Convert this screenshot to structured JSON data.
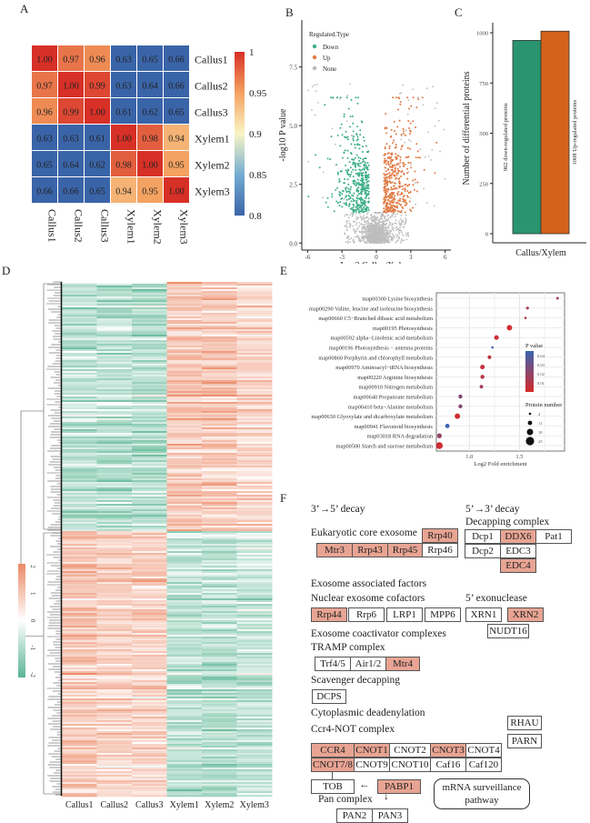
{
  "panels": {
    "A": "A",
    "B": "B",
    "C": "C",
    "D": "D",
    "E": "E",
    "F": "F"
  },
  "chart_data": [
    {
      "id": "A",
      "type": "heatmap",
      "title": "",
      "rows": [
        "Callus1",
        "Callus2",
        "Callus3",
        "Xylem1",
        "Xylem2",
        "Xylem3"
      ],
      "cols": [
        "Callus1",
        "Callus2",
        "Callus3",
        "Xylem1",
        "Xylem2",
        "Xylem3"
      ],
      "values": [
        [
          1.0,
          0.97,
          0.96,
          0.63,
          0.65,
          0.66
        ],
        [
          0.97,
          1.0,
          0.99,
          0.63,
          0.64,
          0.66
        ],
        [
          0.96,
          0.99,
          1.0,
          0.61,
          0.62,
          0.65
        ],
        [
          0.63,
          0.63,
          0.61,
          1.0,
          0.98,
          0.94
        ],
        [
          0.65,
          0.64,
          0.62,
          0.98,
          1.0,
          0.95
        ],
        [
          0.66,
          0.66,
          0.65,
          0.94,
          0.95,
          1.0
        ]
      ],
      "colorbar": {
        "min": 0.8,
        "max": 1,
        "ticks": [
          "1",
          "0.95",
          "0.9",
          "0.85",
          "0.8"
        ],
        "colors": [
          "#3a64a8",
          "#f9f5c5",
          "#d73027"
        ]
      }
    },
    {
      "id": "B",
      "type": "scatter",
      "xlabel": "Log2 Callus/Xylem",
      "ylabel": "-log10 P value",
      "xlim": [
        -6.5,
        6.5
      ],
      "ylim": [
        -0.3,
        9.5
      ],
      "xticks": [
        "-6",
        "-3",
        "0",
        "3",
        "6"
      ],
      "xtick_values": [
        -6,
        -3,
        0,
        3,
        6
      ],
      "yticks": [
        "0.0",
        "2.5",
        "5.0",
        "7.5"
      ],
      "ytick_values": [
        0,
        2.5,
        5,
        7.5
      ],
      "legend": {
        "title": "Regulated.Type",
        "position": "top-left",
        "items": [
          {
            "label": "Down",
            "color": "#3fae8a"
          },
          {
            "label": "Up",
            "color": "#e07b45"
          },
          {
            "label": "None",
            "color": "#b9b9b9"
          }
        ]
      },
      "counts": {
        "Down": 962,
        "Up": 1008
      }
    },
    {
      "id": "C",
      "type": "bar",
      "categories": [
        "Callus/Xylem"
      ],
      "series": [
        {
          "name": "962 down-regulated proteins",
          "values": [
            962
          ],
          "color": "#2a9470"
        },
        {
          "name": "1008 Up-regulated proteins",
          "values": [
            1008
          ],
          "color": "#d4621a"
        }
      ],
      "ylabel": "Number of differential proteins",
      "xlabel": "",
      "ylim": [
        0,
        1050
      ],
      "yticks": [
        0,
        250,
        500,
        750,
        1000
      ]
    },
    {
      "id": "D",
      "type": "heatmap",
      "cols": [
        "Callus1",
        "Callus2",
        "Callus3",
        "Xylem1",
        "Xylem2",
        "Xylem3"
      ],
      "description": "Clustered expression heatmap; upper cluster low in Callus / high in Xylem, lower cluster high in Callus / low in Xylem",
      "colorbar": {
        "min": -2,
        "max": 2,
        "ticks": [
          "2",
          "1",
          "0",
          "-1",
          "-2"
        ],
        "colors": [
          "#5bb594",
          "#ffffff",
          "#ec8a68"
        ]
      }
    },
    {
      "id": "E",
      "type": "scatter",
      "xlabel": "Log2 Fold enrichment",
      "xticks": [
        "1.0",
        "1.5"
      ],
      "xtick_values": [
        1.0,
        1.5
      ],
      "xlim": [
        0.67,
        1.95
      ],
      "categories": [
        "map00300 Lysine biosynthesis",
        "map00290 Valine, leucine and isoleucine biosynthesis",
        "map00660 C5−Branched dibasic acid metabolism",
        "map00195 Photosynthesis",
        "map00592 alpha−Linolenic acid metabolism",
        "map00196 Photosynthesis − antenna proteins",
        "map00860 Porphyrin and chlorophyll metabolism",
        "map00970 Aminoacyl−tRNA biosynthesis",
        "map00220 Arginine biosynthesis",
        "map00910 Nitrogen metabolism",
        "map00640 Propanoate metabolism",
        "map00410 beta−Alanine metabolism",
        "map00630 Glyoxylate and dicarboxylate metabolism",
        "map00941 Flavonoid biosynthesis",
        "map03018 RNA degradation",
        "map00500 Starch and sucrose metabolism"
      ],
      "x": [
        1.88,
        1.58,
        1.56,
        1.4,
        1.27,
        1.23,
        1.2,
        1.13,
        1.13,
        1.12,
        0.91,
        0.91,
        0.88,
        0.78,
        0.7,
        0.7
      ],
      "pvalue": [
        0.015,
        0.012,
        0.01,
        0.002,
        0.003,
        0.045,
        0.008,
        0.006,
        0.01,
        0.015,
        0.025,
        0.025,
        0.002,
        0.045,
        0.02,
        0.003
      ],
      "protein_number": [
        5,
        6,
        4,
        15,
        12,
        4,
        9,
        12,
        10,
        8,
        10,
        10,
        15,
        11,
        13,
        20
      ],
      "legend_pvalue": {
        "title": "P value",
        "ticks": [
          "0.04",
          "0.03",
          "0.02",
          "0.01"
        ]
      },
      "legend_size": {
        "title": "Protein number",
        "ticks": [
          "4",
          "11",
          "18",
          "25"
        ]
      }
    }
  ],
  "pathway": {
    "decay35": "3’→5’ decay",
    "decay53": "5’→3’ decay",
    "core_exosome": "Eukaryotic core exosome",
    "decapping_complex": "Decapping complex",
    "exosome_assoc": "Exosome associated factors",
    "nuclear_cofactors": "Nuclear exosome cofactors",
    "exonuclease": "5’ exonuclease",
    "coactivator": "Exosome coactivator complexes",
    "tramp": "TRAMP complex",
    "scavenger": "Scavenger decapping",
    "deadenylation": "Cytoplasmic deadenylation",
    "ccr4not": "Ccr4-NOT complex",
    "pan_complex": "Pan complex",
    "surveillance": "mRNA surveillance pathway",
    "boxes": {
      "Rrp40": "Rrp40",
      "Mtr3": "Mtr3",
      "Rrp43": "Rrp43",
      "Rrp45": "Rrp45",
      "Rrp46": "Rrp46",
      "Dcp1": "Dcp1",
      "DDX6": "DDX6",
      "Pat1": "Pat1",
      "Dcp2": "Dcp2",
      "EDC3": "EDC3",
      "EDC4": "EDC4",
      "Rrp44": "Rrp44",
      "Rrp6": "Rrp6",
      "LRP1": "LRP1",
      "MPP6": "MPP6",
      "XRN1": "XRN1",
      "XRN2": "XRN2",
      "NUDT16": "NUDT16",
      "Trf45": "Trf4/5",
      "Air12": "Air1/2",
      "Mtr4": "Mtr4",
      "DCPS": "DCPS",
      "RHAU": "RHAU",
      "PARN": "PARN",
      "CCR4": "CCR4",
      "CNOT1": "CNOT1",
      "CNOT2": "CNOT2",
      "CNOT3": "CNOT3",
      "CNOT4": "CNOT4",
      "CNOT78": "CNOT7/8",
      "CNOT9": "CNOT9",
      "CNOT10": "CNOT10",
      "Caf16": "Caf16",
      "Caf120": "Caf120",
      "TOB": "TOB",
      "PABP1": "PABP1",
      "PAN2": "PAN2",
      "PAN3": "PAN3"
    },
    "highlight_color": "#e8a493"
  }
}
